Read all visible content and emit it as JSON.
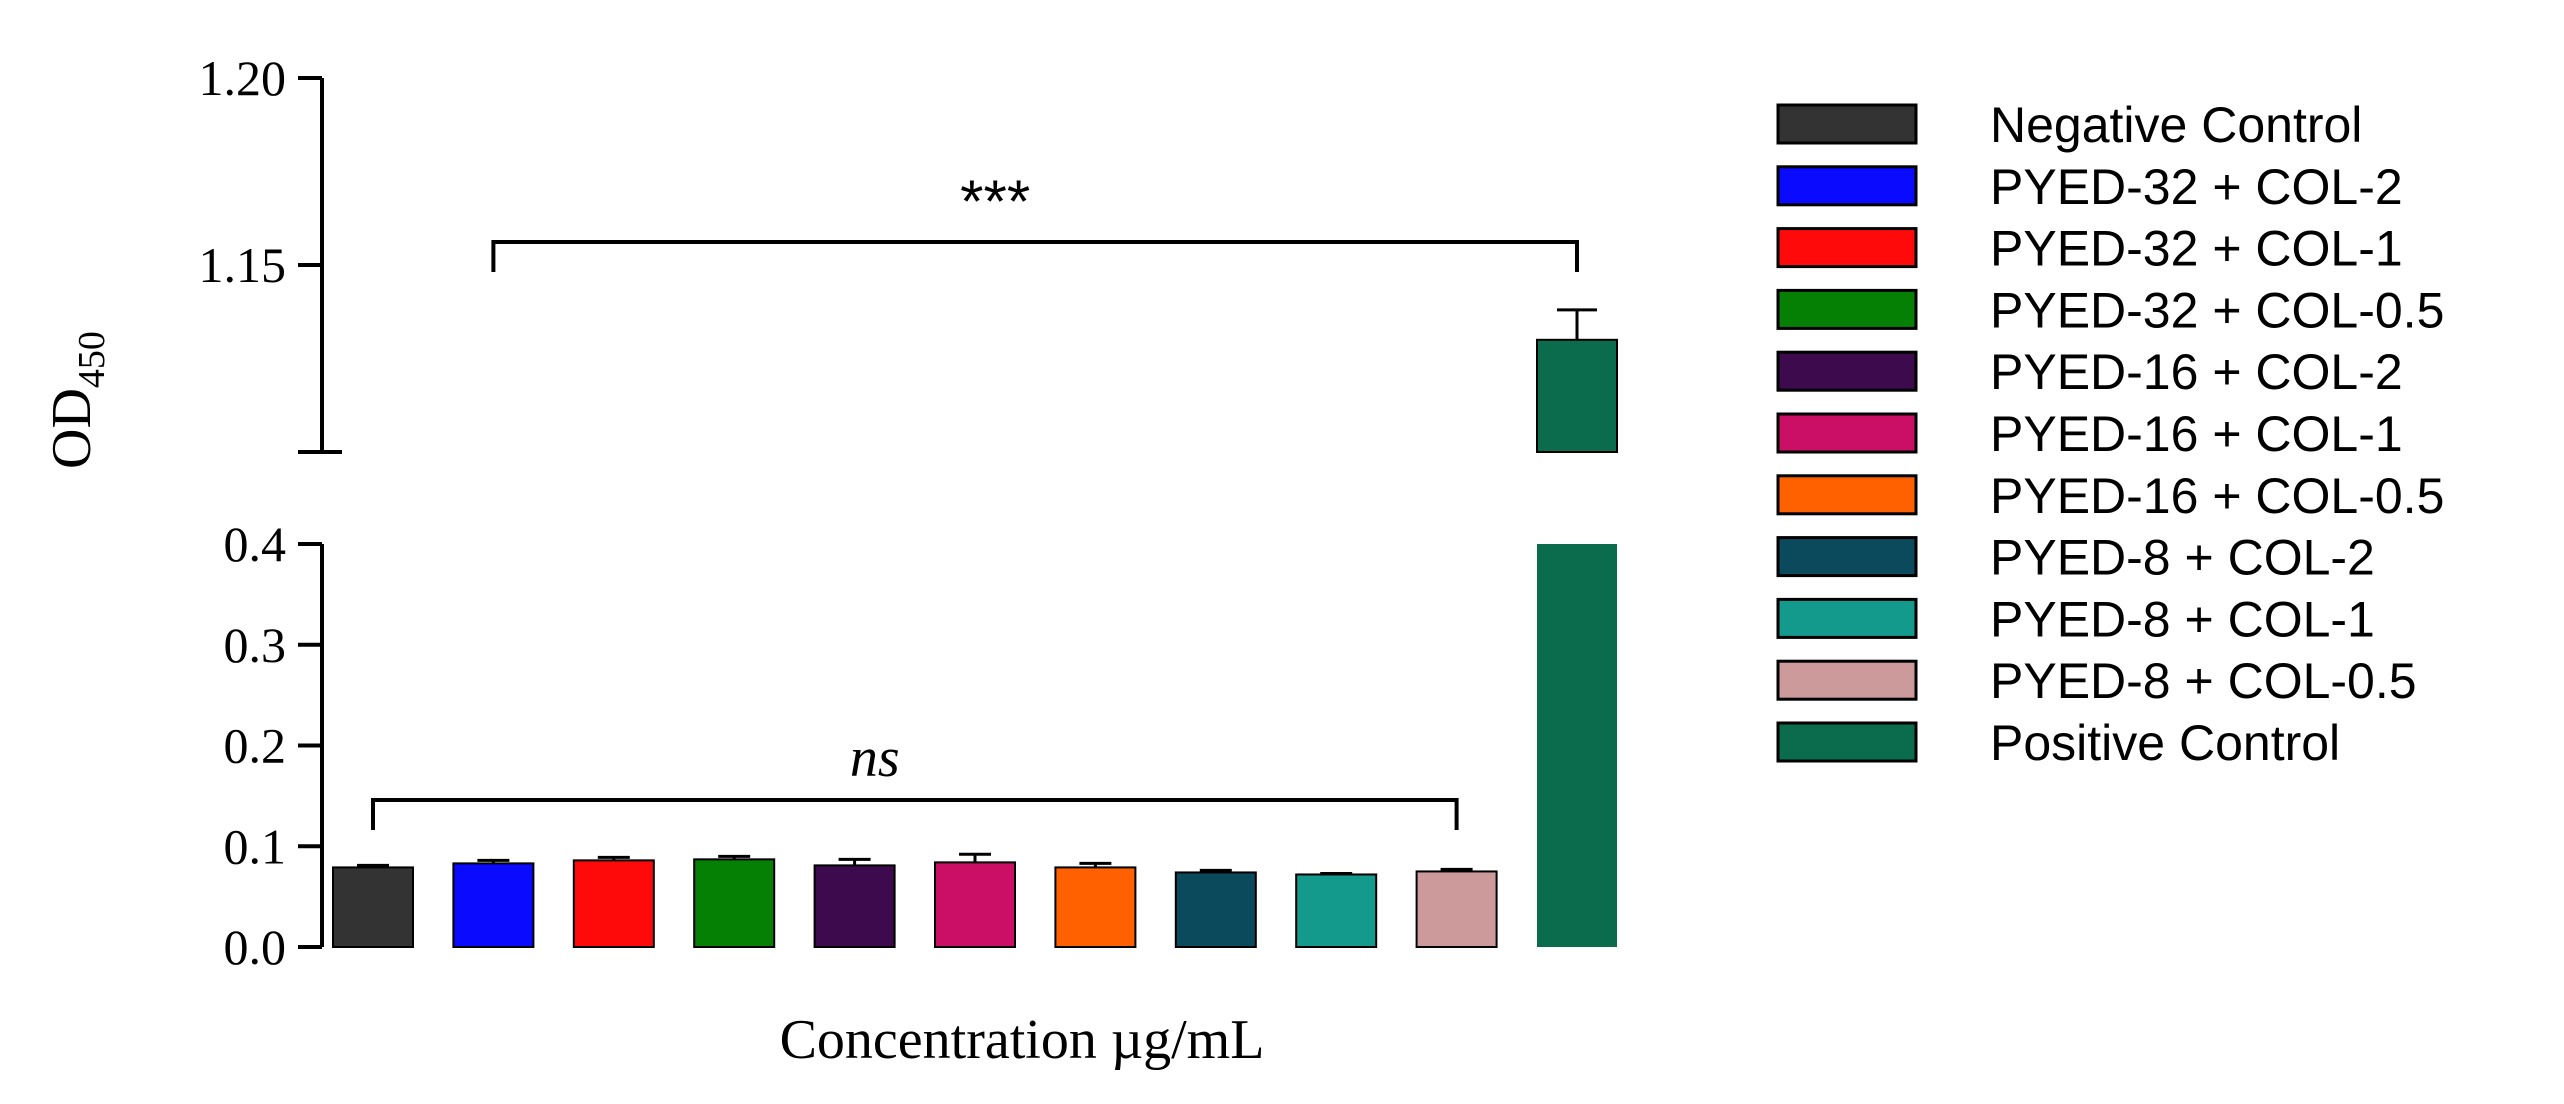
{
  "chart_data": {
    "type": "bar",
    "title": "",
    "xlabel": "Concentration µg/mL",
    "ylabel_main": "OD",
    "ylabel_sub": "450",
    "axis_break": true,
    "lower_ylim": [
      0.0,
      0.4
    ],
    "upper_ylim": [
      1.1,
      1.2
    ],
    "lower_ticks": [
      "0.0",
      "0.1",
      "0.2",
      "0.3",
      "0.4"
    ],
    "upper_ticks": [
      "1.15",
      "1.20"
    ],
    "categories": [
      "Negative Control",
      "PYED-32 + COL-2",
      "PYED-32 + COL-1",
      "PYED-32 + COL-0.5",
      "PYED-16 + COL-2",
      "PYED-16 + COL-1",
      "PYED-16 + COL-0.5",
      "PYED-8 + COL-2",
      "PYED-8 + COL-1",
      "PYED-8 + COL-0.5",
      "Positive Control"
    ],
    "values": [
      0.079,
      0.083,
      0.086,
      0.087,
      0.081,
      0.084,
      0.079,
      0.074,
      0.072,
      0.075,
      1.13
    ],
    "errors": [
      0.002,
      0.003,
      0.003,
      0.003,
      0.006,
      0.008,
      0.004,
      0.002,
      0.001,
      0.002,
      0.008
    ],
    "colors": [
      "#333333",
      "#0a0aff",
      "#ff0a0a",
      "#058005",
      "#3d0a4d",
      "#cc0f66",
      "#ff6000",
      "#0a4a5c",
      "#149a8c",
      "#cc9a9a",
      "#0a6b4d"
    ],
    "legend_position": "right",
    "annotations": [
      {
        "text": "***",
        "from": 1,
        "to": 10
      },
      {
        "text": "ns",
        "from": 0,
        "to": 9
      }
    ]
  }
}
